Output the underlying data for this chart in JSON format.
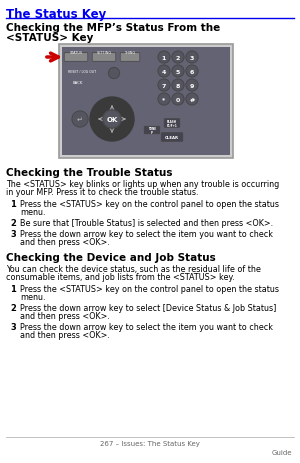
{
  "title": "The Status Key",
  "title_color": "#0000EE",
  "title_underline_color": "#0000EE",
  "bg_color": "#FFFFFF",
  "section2_heading": "Checking the Trouble Status",
  "section2_body_lines": [
    "The <STATUS> key blinks or lights up when any trouble is occurring",
    "in your MFP. Press it to check the trouble status."
  ],
  "section2_items": [
    [
      "Press the <STATUS> key on the control panel to open the status",
      "menu."
    ],
    [
      "Be sure that [Trouble Status] is selected and then press <OK>."
    ],
    [
      "Press the down arrow key to select the item you want to check",
      "and then press <OK>."
    ]
  ],
  "section3_heading": "Checking the Device and Job Status",
  "section3_body_lines": [
    "You can check the device status, such as the residual life of the",
    "consumable items, and job lists from the <STATUS> key."
  ],
  "section3_items": [
    [
      "Press the <STATUS> key on the control panel to open the status",
      "menu."
    ],
    [
      "Press the down arrow key to select [Device Status & Job Status]",
      "and then press <OK>."
    ],
    [
      "Press the down arrow key to select the item you want to check",
      "and then press <OK>."
    ]
  ],
  "footer_text": "267 – Issues: The Status Key",
  "footer_right": "Guide",
  "panel_bg": "#636373",
  "panel_border": "#aaaaaa",
  "arrow_color": "#CC0000",
  "heading1_line1": "Checking the MFP’s Status From the",
  "heading1_line2": "<STATUS> Key"
}
